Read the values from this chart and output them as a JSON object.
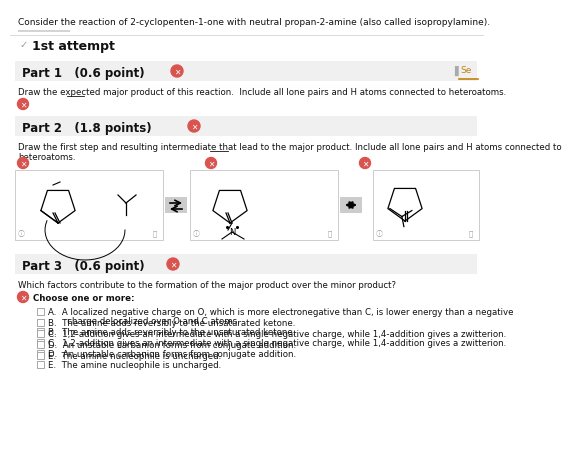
{
  "title": "Consider the reaction of 2-cyclopenten-1-one with neutral propan-2-amine (also called isopropylamine).",
  "attempt_label": "1st attempt",
  "part1_header": "Part 1   (0.6 point)",
  "part1_text": "Draw the expected major product of this reaction.  Include all lone pairs and H atoms connected to heteroatoms.",
  "part2_header": "Part 2   (1.8 points)",
  "part2_line1": "Draw the first step and resulting intermediate that lead to the major product. Include all lone pairs and H atoms connected to",
  "part2_line2": "heteroatoms.",
  "part3_header": "Part 3   (0.6 point)",
  "part3_q": "Which factors contribute to the formation of the major product over the minor product?",
  "part3_choose": "Choose one or more:",
  "opt_a1": "A.  A localized negative charge on O, which is more electronegative than C, is lower energy than a negative",
  "opt_a2": "       charge delocalized over O and C atoms.",
  "opt_b": "B.  The amine adds reversibly to the unsaturated ketone.",
  "opt_c": "C.  1,2-addition gives an intermediate with a single negative charge, while 1,4-addition gives a zwitterion.",
  "opt_d": "D.  An unstable carbanion forms from conjugate addition.",
  "opt_e": "E.  The amine nucleophile is uncharged.",
  "bg_color": "#ffffff",
  "header_bg": "#f0f0f0",
  "red_color": "#d9534f",
  "text_color": "#333333",
  "dark_text": "#111111",
  "gray_color": "#999999",
  "light_gray": "#cccccc",
  "box_border": "#cccccc",
  "arrow_bg": "#cccccc",
  "se_color": "#c0820a",
  "title_fs": 6.5,
  "body_fs": 6.2,
  "header_fs": 8.5,
  "small_fs": 5.5
}
